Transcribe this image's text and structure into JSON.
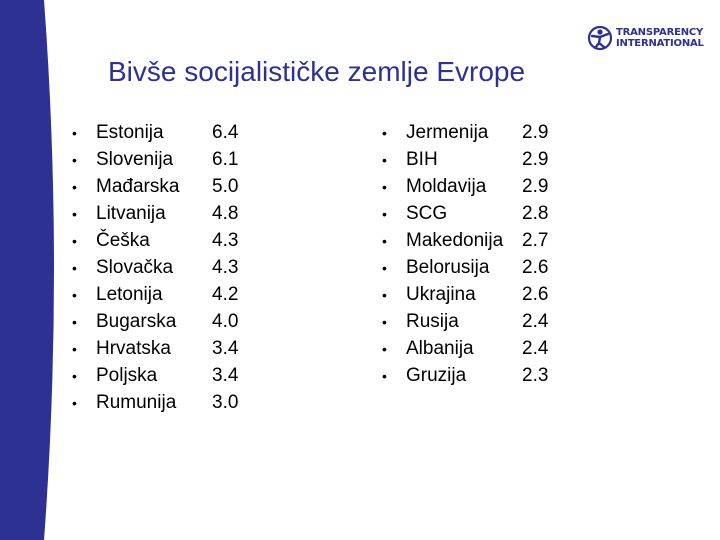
{
  "title": "Bivše socijalističke zemlje Evrope",
  "logo": {
    "line1": "TRANSPARENCY",
    "line2": "INTERNATIONAL",
    "icon": "transparency-international-figure-icon"
  },
  "colors": {
    "title": "#2d3192",
    "highlight": "#c8226b",
    "bar": "#2d3192"
  },
  "left_list": [
    {
      "country": "Estonija",
      "score": "6.4"
    },
    {
      "country": "Slovenija",
      "score": "6.1"
    },
    {
      "country": "Mađarska",
      "score": "5.0"
    },
    {
      "country": "Litvanija",
      "score": "4.8"
    },
    {
      "country": "Češka",
      "score": "4.3"
    },
    {
      "country": "Slovačka",
      "score": "4.3"
    },
    {
      "country": "Letonija",
      "score": "4.2"
    },
    {
      "country": "Bugarska",
      "score": "4.0"
    },
    {
      "country": "Hrvatska",
      "score": "3.4"
    },
    {
      "country": "Poljska",
      "score": "3.4"
    },
    {
      "country": "Rumunija",
      "score": "3.0"
    }
  ],
  "right_list": [
    {
      "country": "Jermenija",
      "score": "2.9"
    },
    {
      "country": "BIH",
      "score": "2.9"
    },
    {
      "country": "Moldavija",
      "score": "2.9"
    },
    {
      "country": "SCG",
      "score": "2.8",
      "highlight": true
    },
    {
      "country": "Makedonija",
      "score": "2.7"
    },
    {
      "country": "Belorusija",
      "score": "2.6"
    },
    {
      "country": "Ukrajina",
      "score": "2.6"
    },
    {
      "country": "Rusija",
      "score": "2.4"
    },
    {
      "country": "Albanija",
      "score": "2.4"
    },
    {
      "country": "Gruzija",
      "score": "2.3"
    }
  ]
}
